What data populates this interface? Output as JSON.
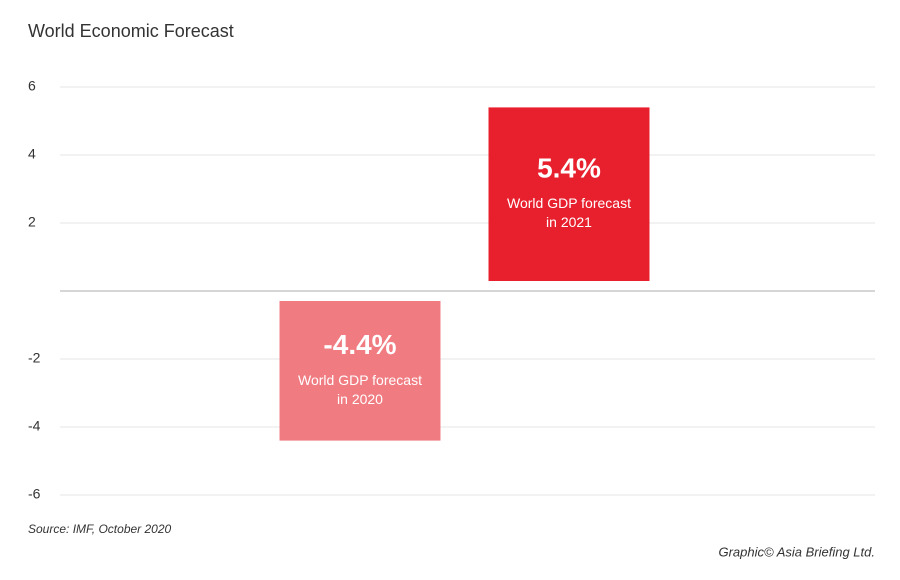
{
  "chart_data": {
    "type": "bar",
    "title": "World Economic Forecast",
    "source": "Source: IMF, October 2020",
    "credit": "Graphic© Asia Briefing Ltd.",
    "categories": [
      "World GDP forecast in 2020",
      "World GDP forecast in 2021"
    ],
    "values": [
      -4.4,
      5.4
    ],
    "value_labels": [
      "-4.4%",
      "5.4%"
    ],
    "colors": [
      "#f07b80",
      "#e8202e"
    ],
    "ylim": [
      -6,
      6
    ],
    "yticks": [
      -6,
      -4,
      -2,
      2,
      4,
      6
    ],
    "grid": true
  }
}
